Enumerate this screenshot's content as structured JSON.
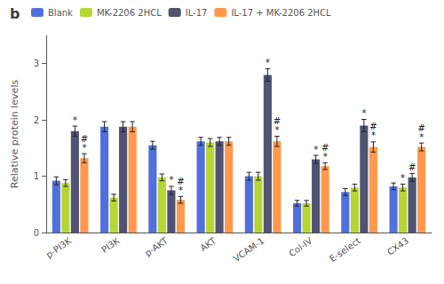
{
  "chart_data": {
    "type": "bar",
    "title": "b",
    "categories": [
      "p-PI3K",
      "PI3K",
      "p-AKT",
      "AKT",
      "VCAM-1",
      "Col-IV",
      "E-select",
      "CX43"
    ],
    "series": [
      {
        "name": "Blank",
        "values": [
          0.92,
          1.88,
          1.55,
          1.62,
          1.0,
          0.52,
          0.72,
          0.82
        ],
        "errors": [
          0.07,
          0.09,
          0.07,
          0.07,
          0.07,
          0.05,
          0.06,
          0.06
        ]
      },
      {
        "name": "MK-2206 2HCL",
        "values": [
          0.88,
          0.62,
          0.98,
          1.6,
          1.0,
          0.52,
          0.8,
          0.8
        ],
        "errors": [
          0.06,
          0.06,
          0.06,
          0.07,
          0.07,
          0.05,
          0.06,
          0.06
        ]
      },
      {
        "name": "IL-17",
        "values": [
          1.8,
          1.88,
          0.75,
          1.62,
          2.8,
          1.3,
          1.9,
          0.98
        ],
        "errors": [
          0.09,
          0.09,
          0.07,
          0.07,
          0.11,
          0.07,
          0.11,
          0.07
        ]
      },
      {
        "name": "IL-17 + MK-2206 2HCL",
        "values": [
          1.32,
          1.88,
          0.58,
          1.62,
          1.62,
          1.18,
          1.52,
          1.52
        ],
        "errors": [
          0.08,
          0.09,
          0.06,
          0.07,
          0.09,
          0.06,
          0.09,
          0.07
        ]
      }
    ],
    "ylabel": "Relative protein levels",
    "ylim": [
      0,
      3.5
    ],
    "yticks": [
      0,
      1,
      2,
      3
    ],
    "grid": false,
    "legend": "upper left",
    "annotations": [
      {
        "category": "p-PI3K",
        "series": "IL-17",
        "text": "*"
      },
      {
        "category": "p-PI3K",
        "series": "IL-17 + MK-2206 2HCL",
        "text": "#\n*"
      },
      {
        "category": "p-AKT",
        "series": "IL-17",
        "text": "*"
      },
      {
        "category": "p-AKT",
        "series": "IL-17 + MK-2206 2HCL",
        "text": "#\n*"
      },
      {
        "category": "VCAM-1",
        "series": "IL-17",
        "text": "*"
      },
      {
        "category": "VCAM-1",
        "series": "IL-17 + MK-2206 2HCL",
        "text": "#\n*"
      },
      {
        "category": "Col-IV",
        "series": "IL-17",
        "text": "*"
      },
      {
        "category": "Col-IV",
        "series": "IL-17 + MK-2206 2HCL",
        "text": "#\n*"
      },
      {
        "category": "E-select",
        "series": "IL-17",
        "text": "*"
      },
      {
        "category": "E-select",
        "series": "IL-17 + MK-2206 2HCL",
        "text": "#\n*"
      },
      {
        "category": "CX43",
        "series": "MK-2206 2HCL",
        "text": "*"
      },
      {
        "category": "CX43",
        "series": "IL-17",
        "text": "#"
      },
      {
        "category": "CX43",
        "series": "IL-17 + MK-2206 2HCL",
        "text": "#\n*"
      }
    ]
  }
}
